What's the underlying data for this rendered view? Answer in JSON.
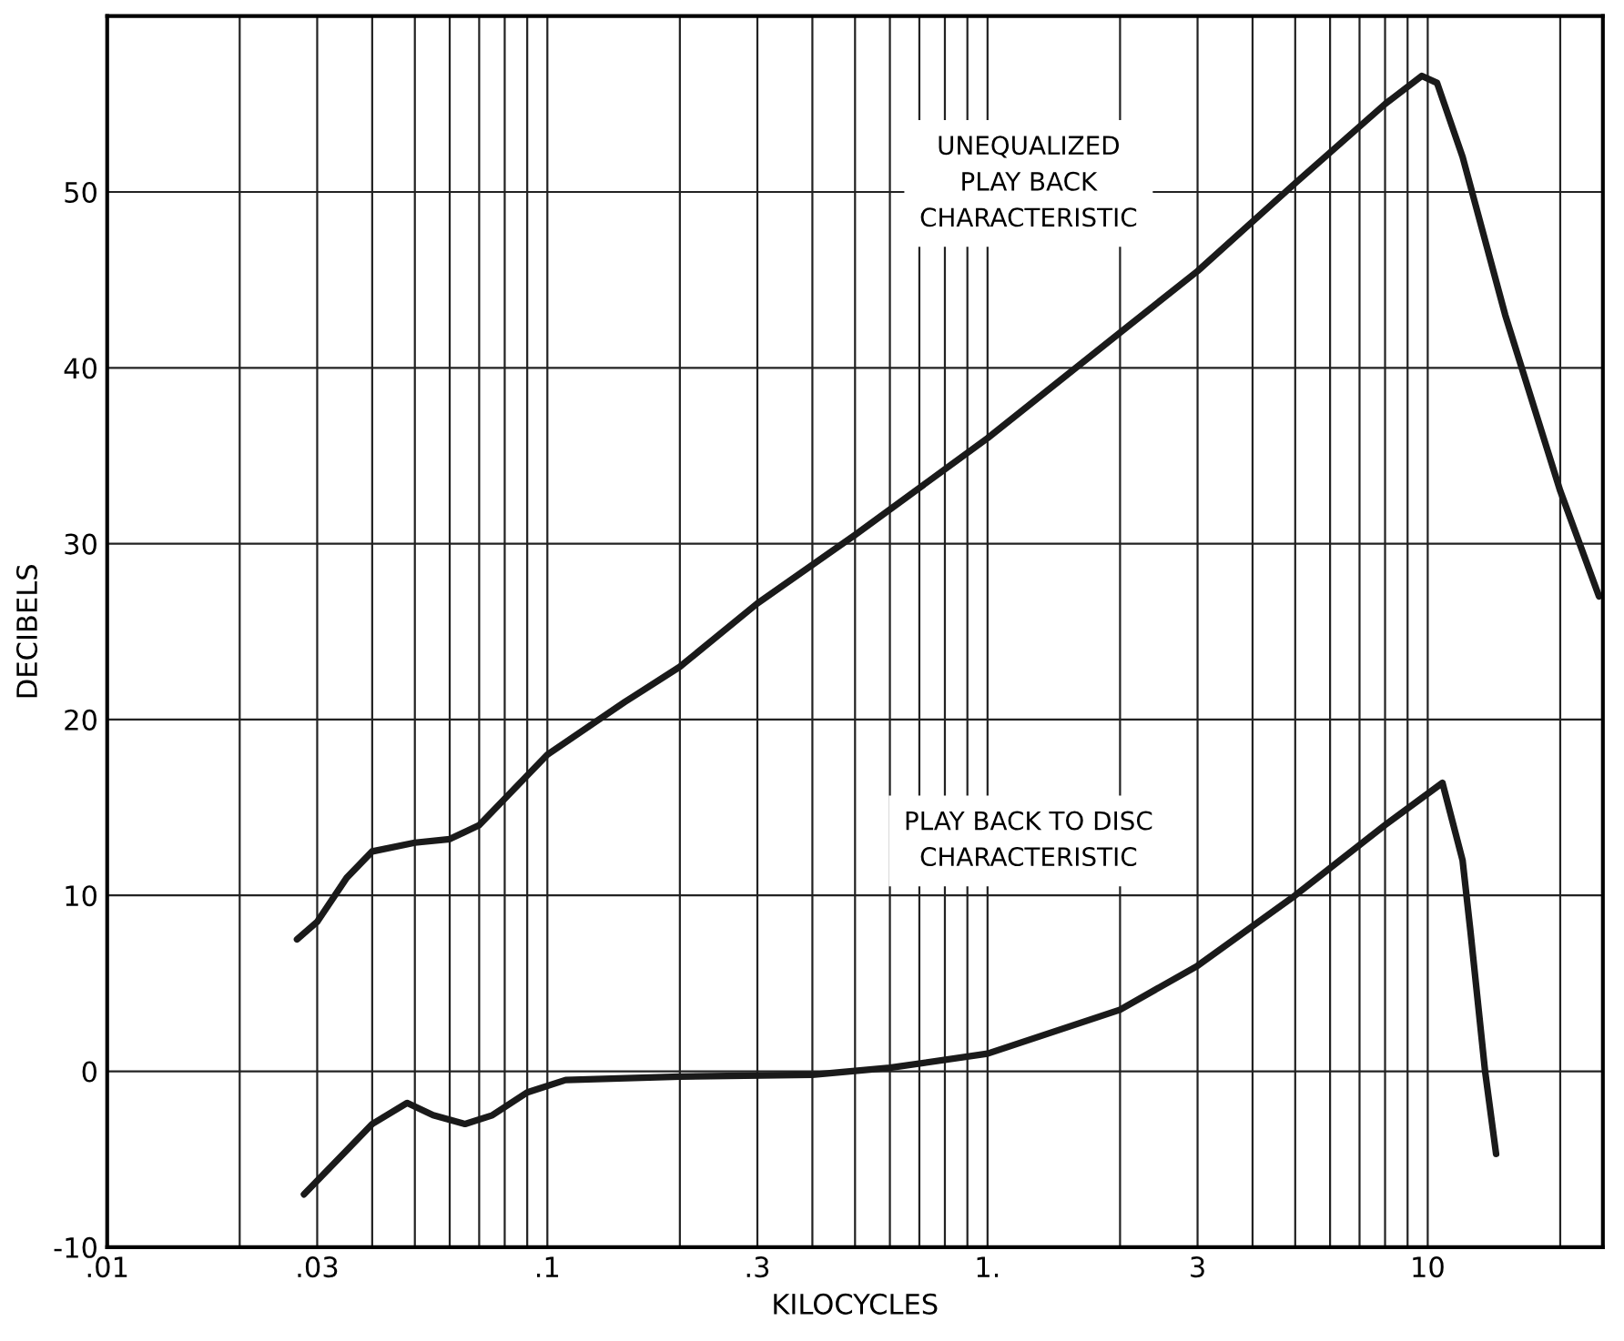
{
  "chart_data": {
    "type": "line",
    "xlabel": "KILOCYCLES",
    "ylabel": "DECIBELS",
    "log": "x",
    "grid": true,
    "legend": false,
    "marker": "none",
    "line_style": "solid",
    "xlim": [
      0.01,
      25
    ],
    "ylim": [
      -10,
      60
    ],
    "xticks": [
      {
        "value": 0.01,
        "label": ".01"
      },
      {
        "value": 0.03,
        "label": ".03"
      },
      {
        "value": 0.1,
        "label": ".1"
      },
      {
        "value": 0.3,
        "label": ".3"
      },
      {
        "value": 1,
        "label": "1."
      },
      {
        "value": 3,
        "label": "3"
      },
      {
        "value": 10,
        "label": "10"
      }
    ],
    "yticks": [
      -10,
      0,
      10,
      20,
      30,
      40,
      50
    ],
    "series": [
      {
        "color": "#1a1a1a",
        "x": [
          0.027,
          0.03,
          0.035,
          0.04,
          0.05,
          0.06,
          0.07,
          0.08,
          0.1,
          0.15,
          0.2,
          0.3,
          0.5,
          1,
          2,
          3,
          5,
          8,
          9.7,
          10.5,
          12,
          15,
          20,
          24.5
        ],
        "values": [
          7.5,
          8.5,
          11,
          12.5,
          13,
          13.2,
          14,
          15.5,
          18,
          21,
          23,
          26.6,
          30.5,
          36,
          42,
          45.5,
          50.5,
          55,
          56.6,
          56.2,
          52,
          43,
          33,
          27
        ]
      },
      {
        "color": "#1a1a1a",
        "x": [
          0.028,
          0.035,
          0.04,
          0.048,
          0.055,
          0.065,
          0.075,
          0.09,
          0.11,
          0.2,
          0.4,
          0.6,
          1,
          2,
          3,
          5,
          8,
          10.8,
          12,
          12.5,
          13.5,
          14.3
        ],
        "values": [
          -7,
          -4.5,
          -3,
          -1.8,
          -2.5,
          -3,
          -2.5,
          -1.2,
          -0.5,
          -0.3,
          -0.2,
          0.2,
          1,
          3.5,
          6,
          10,
          14,
          16.4,
          12,
          8,
          0,
          -4.7
        ]
      }
    ],
    "annotations": [
      "UNEQUALIZED\nPLAY BACK\nCHARACTERISTIC",
      "PLAY BACK TO DISC\nCHARACTERISTIC"
    ]
  }
}
